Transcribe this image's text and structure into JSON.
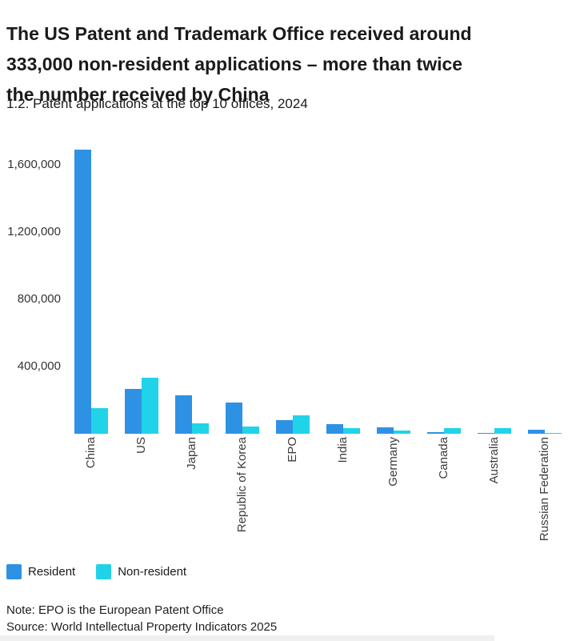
{
  "title_lines": [
    "The US Patent and Trademark Office received around",
    "333,000 non-resident applications – more than twice",
    "the number received by China"
  ],
  "subtitle": "1.2. Patent applications at the top 10 offices, 2024",
  "note": "Note: EPO is the European Patent Office",
  "source": "Source: World Intellectual Property Indicators 2025",
  "colors": {
    "resident": "#2E92E4",
    "non_resident": "#21D3E8",
    "title_text": "#1a1a1a",
    "axis_text": "#333333",
    "category_text": "#3c3c3c"
  },
  "legend": {
    "items": [
      {
        "label": "Resident",
        "color": "#2E92E4"
      },
      {
        "label": "Non-resident",
        "color": "#21D3E8"
      }
    ],
    "position": "bottom-left"
  },
  "chart_data": {
    "type": "bar",
    "title": "1.2. Patent applications at the top 10 offices, 2024",
    "xlabel": "",
    "ylabel": "",
    "categories": [
      "China",
      "US",
      "Japan",
      "Republic of Korea",
      "EPO",
      "India",
      "Germany",
      "Canada",
      "Australia",
      "Russian Federation"
    ],
    "series": [
      {
        "name": "Resident",
        "color": "#2E92E4",
        "values": [
          1690000,
          265000,
          230000,
          185000,
          80000,
          59000,
          40000,
          8000,
          4000,
          24000
        ]
      },
      {
        "name": "Non-resident",
        "color": "#21D3E8",
        "values": [
          150000,
          333000,
          60000,
          43000,
          108000,
          35000,
          17000,
          35000,
          32000,
          7000
        ]
      }
    ],
    "y_ticks": [
      {
        "label": "400,000",
        "value": 400000
      },
      {
        "label": "800,000",
        "value": 800000
      },
      {
        "label": "1,200,000",
        "value": 1200000
      },
      {
        "label": "1,600,000",
        "value": 1600000
      }
    ],
    "ylim": [
      0,
      1785000
    ],
    "grid": false,
    "legend_position": "bottom-left"
  }
}
